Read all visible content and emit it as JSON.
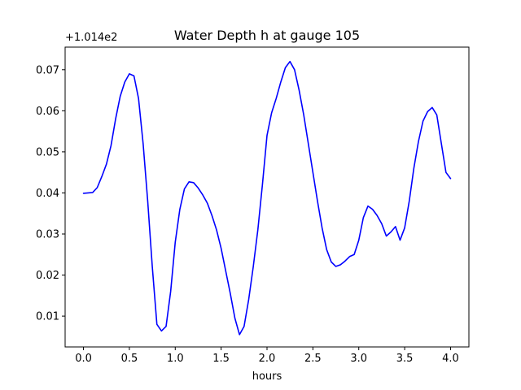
{
  "chart_data": {
    "type": "line",
    "title": "Water Depth h at gauge 105",
    "xlabel": "hours",
    "ylabel": "",
    "y_offset_label": "+1.014e2",
    "xlim": [
      -0.2,
      4.2
    ],
    "ylim": [
      0.0025,
      0.0755
    ],
    "grid": false,
    "x_ticks": [
      0.0,
      0.5,
      1.0,
      1.5,
      2.0,
      2.5,
      3.0,
      3.5,
      4.0
    ],
    "x_tick_labels": [
      "0.0",
      "0.5",
      "1.0",
      "1.5",
      "2.0",
      "2.5",
      "3.0",
      "3.5",
      "4.0"
    ],
    "y_ticks": [
      0.01,
      0.02,
      0.03,
      0.04,
      0.05,
      0.06,
      0.07
    ],
    "y_tick_labels": [
      "0.01",
      "0.02",
      "0.03",
      "0.04",
      "0.05",
      "0.06",
      "0.07"
    ],
    "series": [
      {
        "color": "#0000ff",
        "x": [
          0.0,
          0.05,
          0.1,
          0.15,
          0.2,
          0.25,
          0.3,
          0.35,
          0.4,
          0.45,
          0.5,
          0.55,
          0.6,
          0.65,
          0.7,
          0.75,
          0.8,
          0.85,
          0.9,
          0.95,
          1.0,
          1.05,
          1.1,
          1.15,
          1.2,
          1.25,
          1.3,
          1.35,
          1.4,
          1.45,
          1.5,
          1.55,
          1.6,
          1.65,
          1.7,
          1.75,
          1.8,
          1.85,
          1.9,
          1.95,
          2.0,
          2.05,
          2.1,
          2.15,
          2.2,
          2.25,
          2.3,
          2.35,
          2.4,
          2.45,
          2.5,
          2.55,
          2.6,
          2.65,
          2.7,
          2.75,
          2.8,
          2.85,
          2.9,
          2.95,
          3.0,
          3.05,
          3.1,
          3.15,
          3.2,
          3.25,
          3.3,
          3.35,
          3.4,
          3.45,
          3.5,
          3.55,
          3.6,
          3.65,
          3.7,
          3.75,
          3.8,
          3.85,
          3.9,
          3.95,
          4.0
        ],
        "y": [
          0.0399,
          0.04,
          0.0401,
          0.0413,
          0.044,
          0.047,
          0.0515,
          0.058,
          0.0635,
          0.067,
          0.069,
          0.0685,
          0.063,
          0.052,
          0.038,
          0.022,
          0.008,
          0.0064,
          0.0075,
          0.016,
          0.028,
          0.036,
          0.041,
          0.0427,
          0.0425,
          0.0412,
          0.0395,
          0.0375,
          0.0345,
          0.031,
          0.0265,
          0.021,
          0.0155,
          0.0095,
          0.0055,
          0.0075,
          0.014,
          0.022,
          0.031,
          0.042,
          0.054,
          0.0595,
          0.063,
          0.067,
          0.0705,
          0.072,
          0.07,
          0.065,
          0.059,
          0.052,
          0.045,
          0.038,
          0.0315,
          0.0262,
          0.0232,
          0.0221,
          0.0225,
          0.0234,
          0.0245,
          0.025,
          0.0285,
          0.034,
          0.0368,
          0.036,
          0.0345,
          0.0325,
          0.0295,
          0.0305,
          0.0318,
          0.0285,
          0.0315,
          0.038,
          0.046,
          0.0525,
          0.0575,
          0.0598,
          0.0608,
          0.059,
          0.052,
          0.045,
          0.0435
        ]
      }
    ]
  }
}
